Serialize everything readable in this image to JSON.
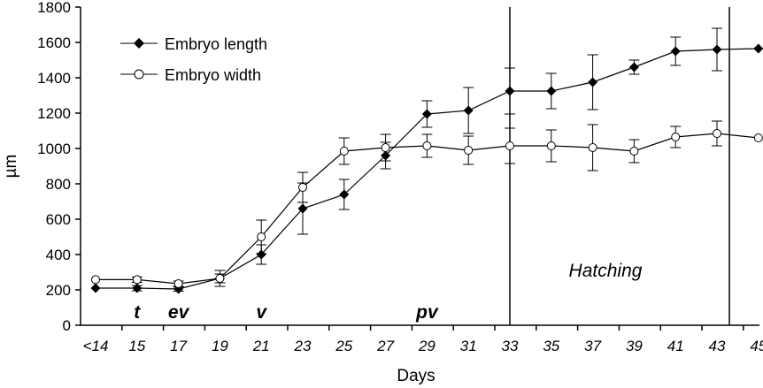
{
  "chart_data": {
    "type": "line",
    "xlabel": "Days",
    "ylabel": "µm",
    "ylim": [
      0,
      1800
    ],
    "yticks": [
      0,
      200,
      400,
      600,
      800,
      1000,
      1200,
      1400,
      1600,
      1800
    ],
    "categories": [
      "<14",
      "15",
      "17",
      "19",
      "21",
      "23",
      "25",
      "27",
      "29",
      "31",
      "33",
      "35",
      "37",
      "39",
      "41",
      "43",
      "45"
    ],
    "grid": false,
    "legend_position": "top-left",
    "series": [
      {
        "name": "Embryo length",
        "marker": "filled-diamond",
        "color": "#000000",
        "values": [
          210,
          210,
          205,
          265,
          400,
          660,
          740,
          960,
          1195,
          1215,
          1325,
          1325,
          1375,
          1460,
          1550,
          1560,
          1565
        ],
        "errors": [
          0,
          15,
          12,
          45,
          55,
          145,
          85,
          75,
          75,
          130,
          130,
          100,
          155,
          40,
          80,
          120,
          0
        ]
      },
      {
        "name": "Embryo width",
        "marker": "open-circle",
        "color": "#000000",
        "values": [
          258,
          258,
          235,
          265,
          500,
          780,
          985,
          1005,
          1015,
          990,
          1015,
          1015,
          1005,
          985,
          1065,
          1085,
          1060
        ],
        "errors": [
          0,
          15,
          15,
          25,
          95,
          85,
          75,
          75,
          65,
          80,
          100,
          90,
          130,
          65,
          60,
          70,
          0
        ]
      }
    ],
    "stage_labels": [
      {
        "text": "t",
        "x_category": "15"
      },
      {
        "text": "ev",
        "x_category": "17"
      },
      {
        "text": "v",
        "x_category": "21"
      },
      {
        "text": "pv",
        "x_category": "29"
      }
    ],
    "hatching": {
      "label": "Hatching",
      "start_x": 33,
      "end_x": 43.6
    }
  }
}
